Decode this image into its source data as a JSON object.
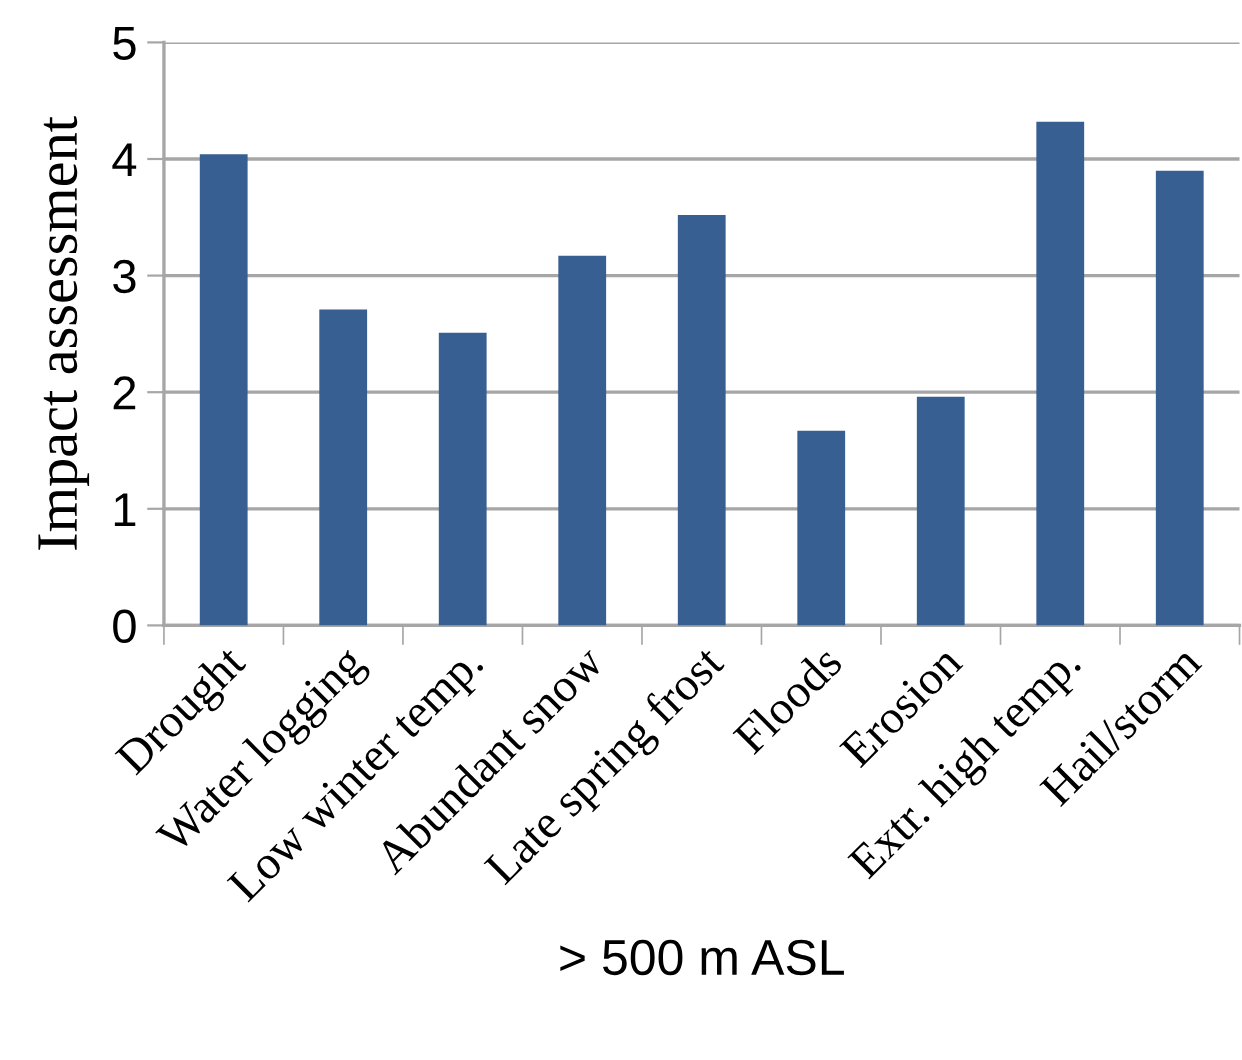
{
  "chart_data": {
    "type": "bar",
    "xlabel": "> 500 m ASL",
    "ylabel": "Impact assessment",
    "categories": [
      "Drought",
      "Water logging",
      "Low winter temp.",
      "Abundant snow",
      "Late spring frost",
      "Floods",
      "Erosion",
      "Extr. high temp.",
      "Hail/storm"
    ],
    "values": [
      4.04,
      2.71,
      2.51,
      3.17,
      3.52,
      1.67,
      1.96,
      4.32,
      3.9
    ],
    "color": "#375f91",
    "ylim": [
      0,
      5
    ],
    "yticks": [
      0,
      1,
      2,
      3,
      4,
      5
    ],
    "grid": "y"
  }
}
